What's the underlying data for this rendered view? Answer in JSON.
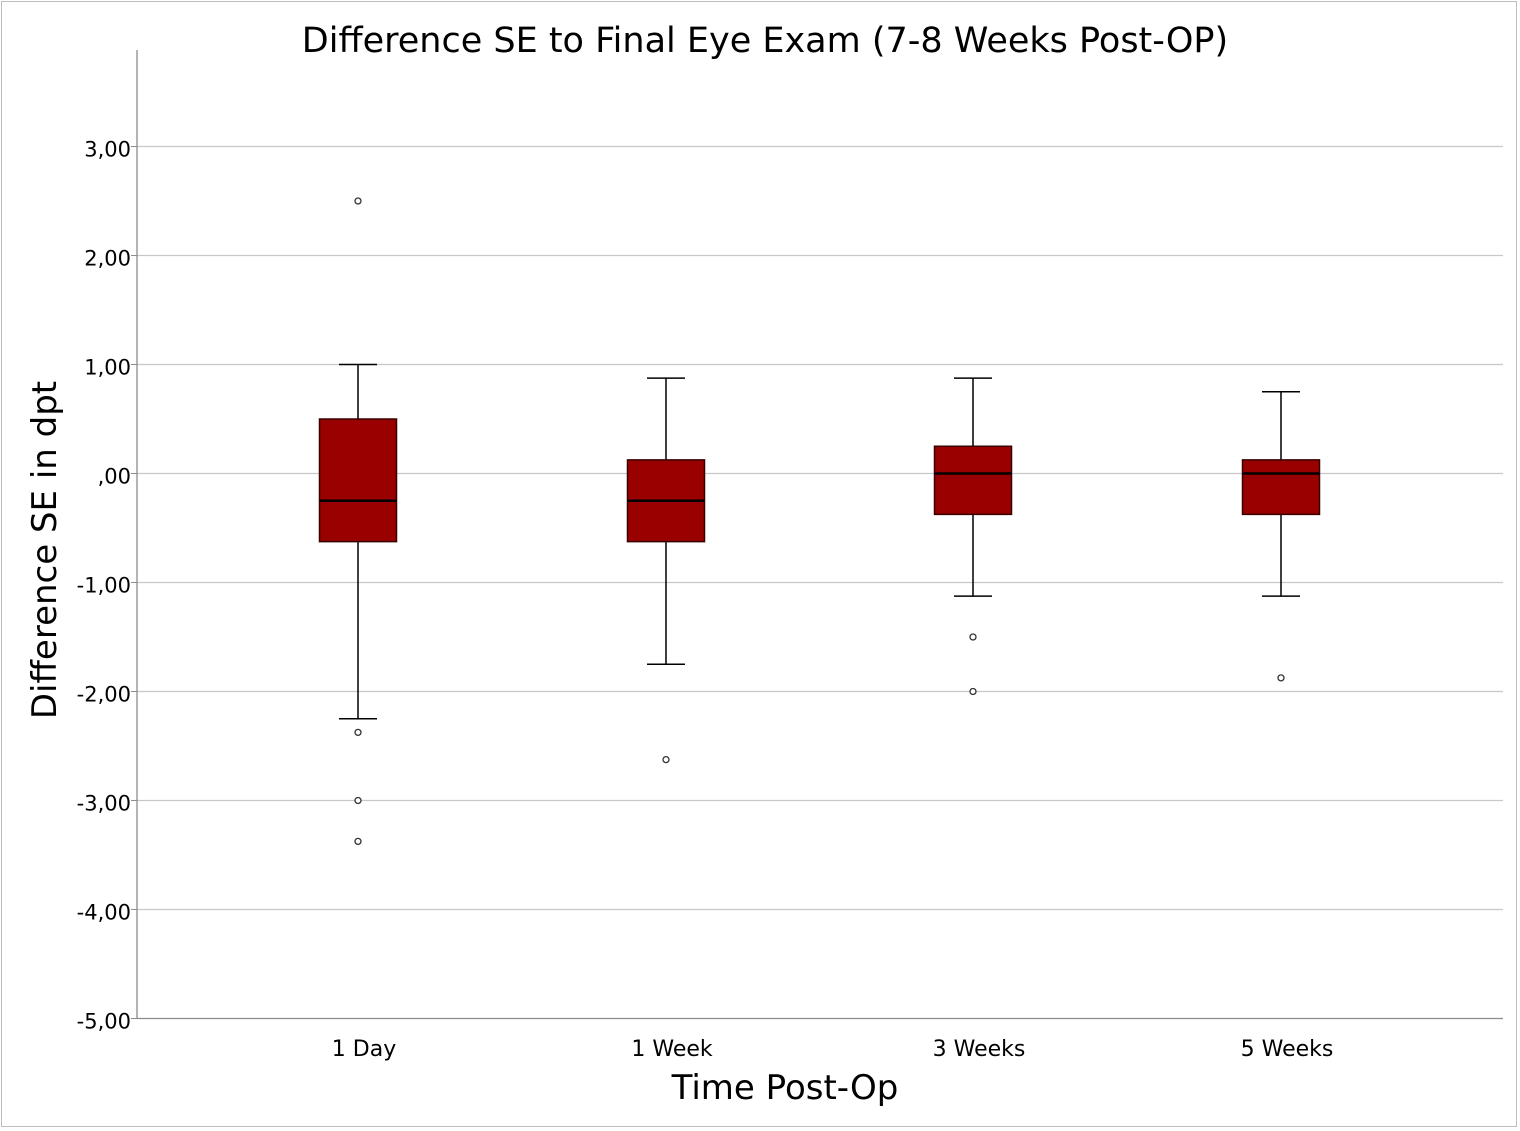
{
  "chart_data": {
    "type": "box",
    "title": "Difference SE to Final Eye Exam (7-8 Weeks Post-OP)",
    "xlabel": "Time Post-Op",
    "ylabel": "Difference SE in dpt",
    "ylim": [
      -5,
      3.9
    ],
    "yticks": [
      3,
      2,
      1,
      0,
      -1,
      -2,
      -3,
      -4,
      -5
    ],
    "ytick_labels": [
      "3,00",
      "2,00",
      "1,00",
      ",00",
      "-1,00",
      "-2,00",
      "-3,00",
      "-4,00",
      "-5,00"
    ],
    "grid": true,
    "categories": [
      "1 Day",
      "1 Week",
      "3 Weeks",
      "5 Weeks"
    ],
    "boxes": [
      {
        "category": "1 Day",
        "whisker_low": -2.25,
        "q1": -0.625,
        "median": -0.25,
        "q3": 0.5,
        "whisker_high": 1.0,
        "outliers": [
          2.5,
          -2.375,
          -3.0,
          -3.375
        ]
      },
      {
        "category": "1 Week",
        "whisker_low": -1.75,
        "q1": -0.625,
        "median": -0.25,
        "q3": 0.125,
        "whisker_high": 0.875,
        "outliers": [
          -2.625
        ]
      },
      {
        "category": "3 Weeks",
        "whisker_low": -1.125,
        "q1": -0.375,
        "median": 0.0,
        "q3": 0.25,
        "whisker_high": 0.875,
        "outliers": [
          -1.5,
          -2.0
        ]
      },
      {
        "category": "5 Weeks",
        "whisker_low": -1.125,
        "q1": -0.375,
        "median": 0.0,
        "q3": 0.125,
        "whisker_high": 0.75,
        "outliers": [
          -1.875
        ]
      }
    ],
    "colors": {
      "box_fill": "#990000",
      "box_stroke": "#3a0000",
      "median": "#000000",
      "grid": "#c8c8c8",
      "axis": "#8c8c8c",
      "whisker": "#000000"
    }
  }
}
